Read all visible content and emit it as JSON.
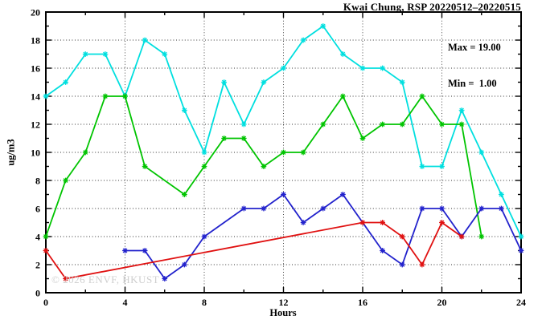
{
  "chart_data": {
    "type": "line",
    "title": "Kwai Chung, RSP 20220512–20220515",
    "xlabel": "Hours",
    "ylabel": "ug/m3",
    "xlim": [
      0,
      24
    ],
    "ylim": [
      0,
      20
    ],
    "x_major_ticks": [
      0,
      4,
      8,
      12,
      16,
      20,
      24
    ],
    "x_minor_step": 2,
    "y_major_ticks": [
      0,
      2,
      4,
      6,
      8,
      10,
      12,
      14,
      16,
      18,
      20
    ],
    "y_minor_step": 1,
    "grid": true,
    "legend": "none",
    "x": [
      0,
      1,
      2,
      3,
      4,
      5,
      6,
      7,
      8,
      9,
      10,
      11,
      12,
      13,
      14,
      15,
      16,
      17,
      18,
      19,
      20,
      21,
      22,
      23,
      24
    ],
    "series": [
      {
        "name": "cyan",
        "color": "#00dfdf",
        "values": [
          14,
          15,
          17,
          17,
          14,
          18,
          17,
          13,
          10,
          15,
          12,
          15,
          16,
          18,
          19,
          17,
          16,
          16,
          15,
          9,
          9,
          13,
          10,
          7,
          4
        ]
      },
      {
        "name": "green",
        "color": "#00c400",
        "values": [
          4,
          8,
          10,
          14,
          14,
          9,
          null,
          7,
          9,
          11,
          11,
          9,
          10,
          10,
          12,
          14,
          11,
          12,
          12,
          14,
          12,
          12,
          4,
          null,
          null
        ]
      },
      {
        "name": "blue",
        "color": "#2222cc",
        "values": [
          null,
          null,
          null,
          null,
          3,
          3,
          1,
          2,
          4,
          null,
          6,
          6,
          7,
          5,
          6,
          7,
          null,
          3,
          2,
          6,
          6,
          4,
          6,
          6,
          3
        ]
      },
      {
        "name": "red",
        "color": "#e01010",
        "values": [
          3,
          1,
          null,
          null,
          null,
          null,
          null,
          null,
          null,
          null,
          null,
          null,
          null,
          null,
          null,
          null,
          5,
          5,
          4,
          2,
          5,
          4,
          null,
          null,
          null
        ]
      }
    ],
    "annotations": {
      "max_label": "Max = 19.00",
      "min_label": "Min =  1.00",
      "watermark": "© 2026 ENVF, HKUST"
    }
  }
}
